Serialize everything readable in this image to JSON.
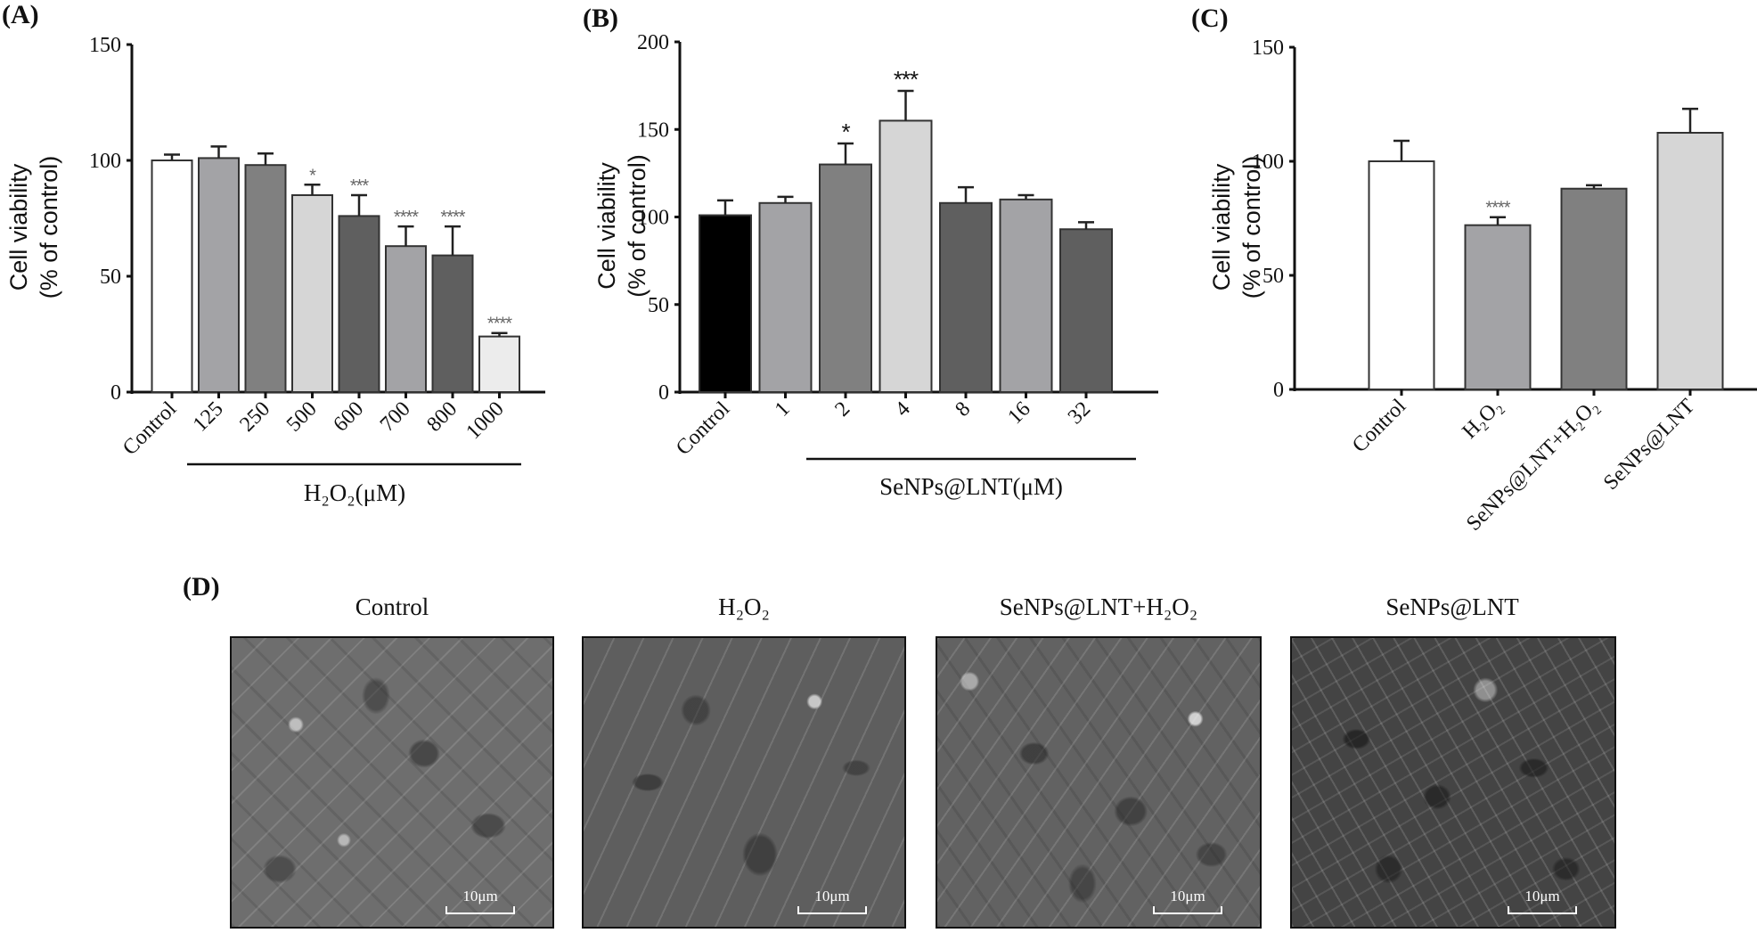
{
  "panels": {
    "A": {
      "label": "(A)"
    },
    "B": {
      "label": "(B)"
    },
    "C": {
      "label": "(C)"
    },
    "D": {
      "label": "(D)"
    }
  },
  "chart_data": [
    {
      "id": "A",
      "type": "bar",
      "title": "",
      "ylabel_line1": "Cell viability",
      "ylabel_line2": "(% of control)",
      "xlabel": "H2O2(μM)",
      "group_label": "H₂O₂(μM)",
      "ylim": [
        0,
        150
      ],
      "yticks": [
        0,
        50,
        100,
        150
      ],
      "categories": [
        "Control",
        "125",
        "250",
        "500",
        "600",
        "700",
        "800",
        "1000"
      ],
      "values": [
        100,
        101,
        98,
        85,
        76,
        63,
        59,
        24
      ],
      "errors": [
        2.5,
        5,
        5,
        4.5,
        9,
        8.5,
        12.5,
        1.5
      ],
      "significance": [
        "",
        "",
        "",
        "*",
        "***",
        "****",
        "****",
        "****"
      ],
      "colors": [
        "#ffffff",
        "#a3a3a6",
        "#808080",
        "#d6d6d6",
        "#5f5f5f",
        "#a3a3a6",
        "#5f5f5f",
        "#ececec"
      ],
      "grid": false,
      "legend": "none"
    },
    {
      "id": "B",
      "type": "bar",
      "title": "",
      "ylabel_line1": "Cell viability",
      "ylabel_line2": "(% of control)",
      "xlabel": "SeNPs@LNT(μM)",
      "group_label": "SeNPs@LNT(μM)",
      "ylim": [
        0,
        200
      ],
      "yticks": [
        0,
        50,
        100,
        150,
        200
      ],
      "categories": [
        "Control",
        "1",
        "2",
        "4",
        "8",
        "16",
        "32"
      ],
      "values": [
        101,
        108,
        130,
        155,
        108,
        110,
        93
      ],
      "errors": [
        8.5,
        3.5,
        12,
        17,
        9,
        2.5,
        4
      ],
      "significance": [
        "",
        "",
        "*",
        "***",
        "",
        "",
        ""
      ],
      "colors": [
        "#000000",
        "#a3a3a6",
        "#808080",
        "#d6d6d6",
        "#5f5f5f",
        "#a3a3a6",
        "#5f5f5f"
      ],
      "grid": false,
      "legend": "none"
    },
    {
      "id": "C",
      "type": "bar",
      "title": "",
      "ylabel_line1": "Cell viability",
      "ylabel_line2": "(% of control)",
      "xlabel": "",
      "ylim": [
        0,
        150
      ],
      "yticks": [
        0,
        50,
        100,
        150
      ],
      "categories": [
        "Control",
        "H₂O₂",
        "SeNPs@LNT+H₂O₂",
        "SeNPs@LNT"
      ],
      "values": [
        100,
        72,
        88,
        112.5
      ],
      "errors": [
        9,
        3.5,
        1.5,
        10.5
      ],
      "significance": [
        "",
        "****",
        "",
        ""
      ],
      "colors": [
        "#ffffff",
        "#a3a3a6",
        "#808080",
        "#d6d6d6"
      ],
      "grid": false,
      "legend": "none"
    }
  ],
  "micrographs": [
    {
      "title": "Control",
      "scale_bar": "10μm"
    },
    {
      "title": "H₂O₂",
      "scale_bar": "10μm"
    },
    {
      "title": "SeNPs@LNT+H₂O₂",
      "scale_bar": "10μm"
    },
    {
      "title": "SeNPs@LNT",
      "scale_bar": "10μm"
    }
  ]
}
